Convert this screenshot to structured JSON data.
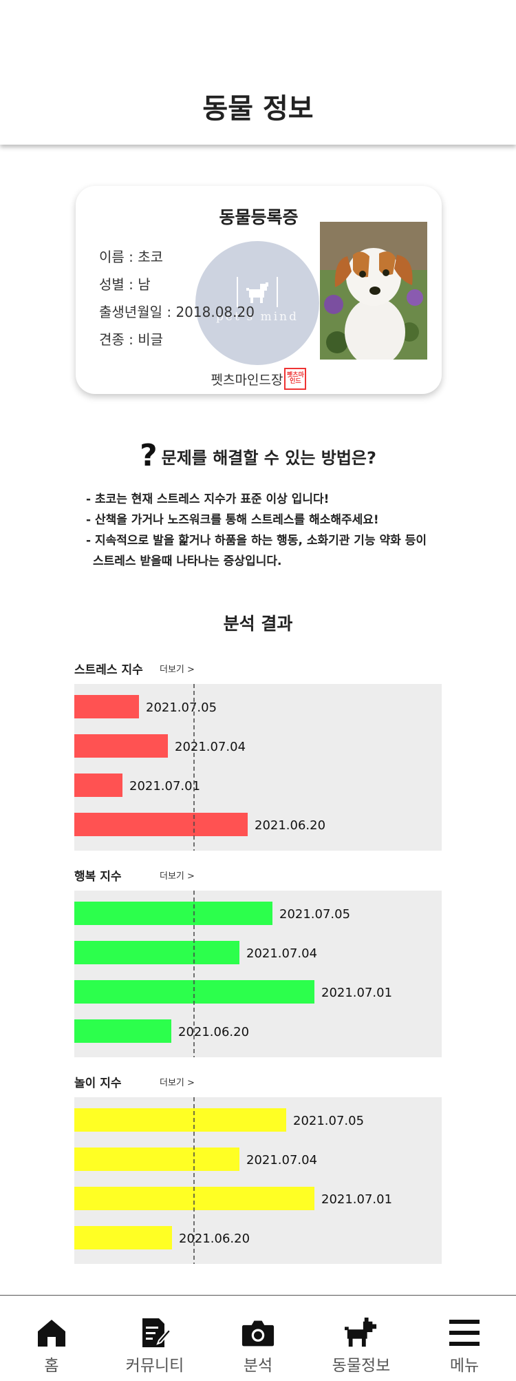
{
  "header": {
    "title": "동물 정보"
  },
  "card": {
    "title": "동물등록증",
    "name": "이름 : 초코",
    "sex": "성별 : 남",
    "birth": "출생년월일 : 2018.08.20",
    "breed": "견종 : 비글",
    "issuer": "펫츠마인드장",
    "stamp_text": "펫츠마인드",
    "seal_text": "pet's mind"
  },
  "solution": {
    "title": "문제를 해결할 수 있는 방법은?",
    "lines": [
      "- 초코는 현재 스트레스 지수가 표준 이상 입니다!",
      "- 산책을 가거나 노즈워크를 통해 스트레스를 해소해주세요!",
      "- 지속적으로 발을 핥거나 하품을 하는 행동, 소화기관 기능 약화 등이",
      "스트레스 받을때 나타나는 증상입니다."
    ]
  },
  "analysis": {
    "title": "분석 결과"
  },
  "charts": [
    {
      "label": "스트레스 지수",
      "more": "더보기 >"
    },
    {
      "label": "행복 지수",
      "more": "더보기 >"
    },
    {
      "label": "놀이 지수",
      "more": "더보기 >"
    }
  ],
  "chart_data": [
    {
      "type": "bar",
      "orientation": "horizontal",
      "categories": [
        "2021.07.05",
        "2021.07.04",
        "2021.07.01",
        "2021.06.20"
      ],
      "values": [
        94,
        136,
        70,
        252
      ],
      "xlim": [
        0,
        534
      ],
      "reference_line": 174,
      "color": "#ff5252",
      "grid": false
    },
    {
      "type": "bar",
      "orientation": "horizontal",
      "categories": [
        "2021.07.05",
        "2021.07.04",
        "2021.07.01",
        "2021.06.20"
      ],
      "values": [
        288,
        240,
        349,
        141
      ],
      "xlim": [
        0,
        534
      ],
      "reference_line": 174,
      "color": "#2cff4c",
      "grid": false
    },
    {
      "type": "bar",
      "orientation": "horizontal",
      "categories": [
        "2021.07.05",
        "2021.07.04",
        "2021.07.01",
        "2021.06.20"
      ],
      "values": [
        308,
        240,
        349,
        142
      ],
      "xlim": [
        0,
        534
      ],
      "reference_line": 174,
      "color": "#ffff24",
      "grid": false
    }
  ],
  "nav": [
    {
      "label": "홈",
      "icon": "home-icon"
    },
    {
      "label": "커뮤니티",
      "icon": "community-icon"
    },
    {
      "label": "분석",
      "icon": "camera-icon"
    },
    {
      "label": "동물정보",
      "icon": "dog-icon"
    },
    {
      "label": "메뉴",
      "icon": "menu-icon"
    }
  ]
}
